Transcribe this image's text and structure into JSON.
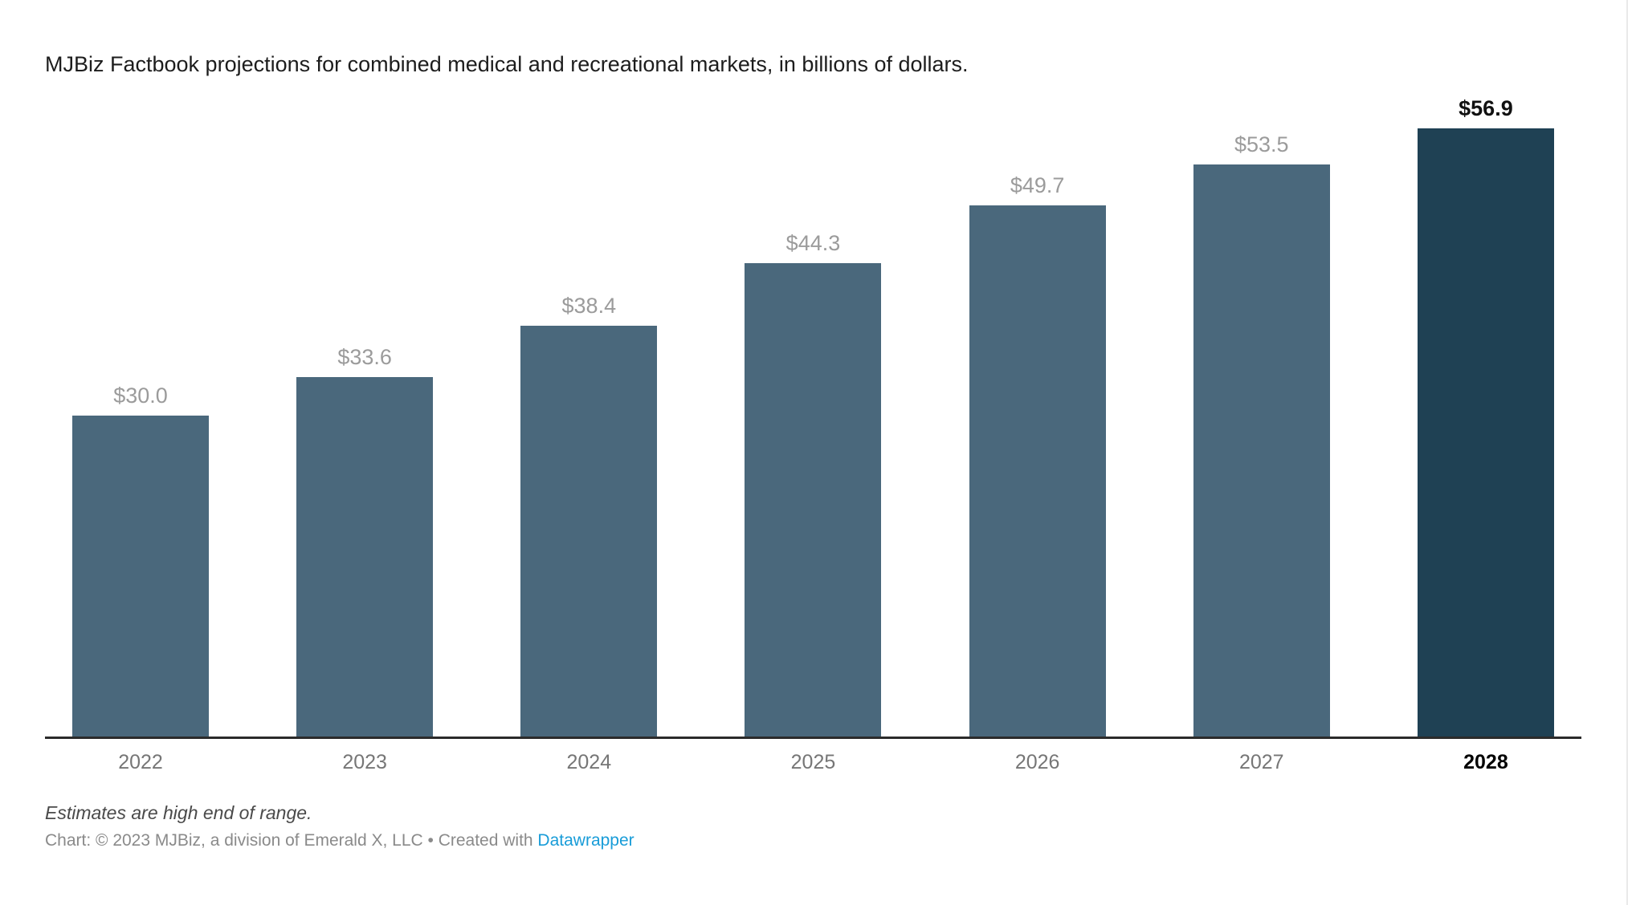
{
  "title": "MJBiz Factbook projections for combined medical and recreational markets, in billions of dollars.",
  "chart_data": {
    "type": "bar",
    "categories": [
      "2022",
      "2023",
      "2024",
      "2025",
      "2026",
      "2027",
      "2028"
    ],
    "values": [
      30.0,
      33.6,
      38.4,
      44.3,
      49.7,
      53.5,
      56.9
    ],
    "value_labels": [
      "$30.0",
      "$33.6",
      "$38.4",
      "$44.3",
      "$49.7",
      "$53.5",
      "$56.9"
    ],
    "title": "MJBiz Factbook projections for combined medical and recreational markets, in billions of dollars.",
    "xlabel": "",
    "ylabel": "",
    "ylim": [
      0,
      60
    ],
    "grid": false,
    "legend": false,
    "bar_color": "#4a687c",
    "highlight_color": "#1f4154",
    "highlight_index": 6,
    "value_label_color": "#9b9b9b",
    "highlight_label_color": "#111111",
    "axis_line_color": "#2b2b2b"
  },
  "footer": {
    "note": "Estimates are high end of range.",
    "attribution_prefix": "Chart: © 2023 MJBiz, a division of Emerald X, LLC • Created with ",
    "attribution_link": "Datawrapper",
    "link_color": "#189cd8"
  }
}
